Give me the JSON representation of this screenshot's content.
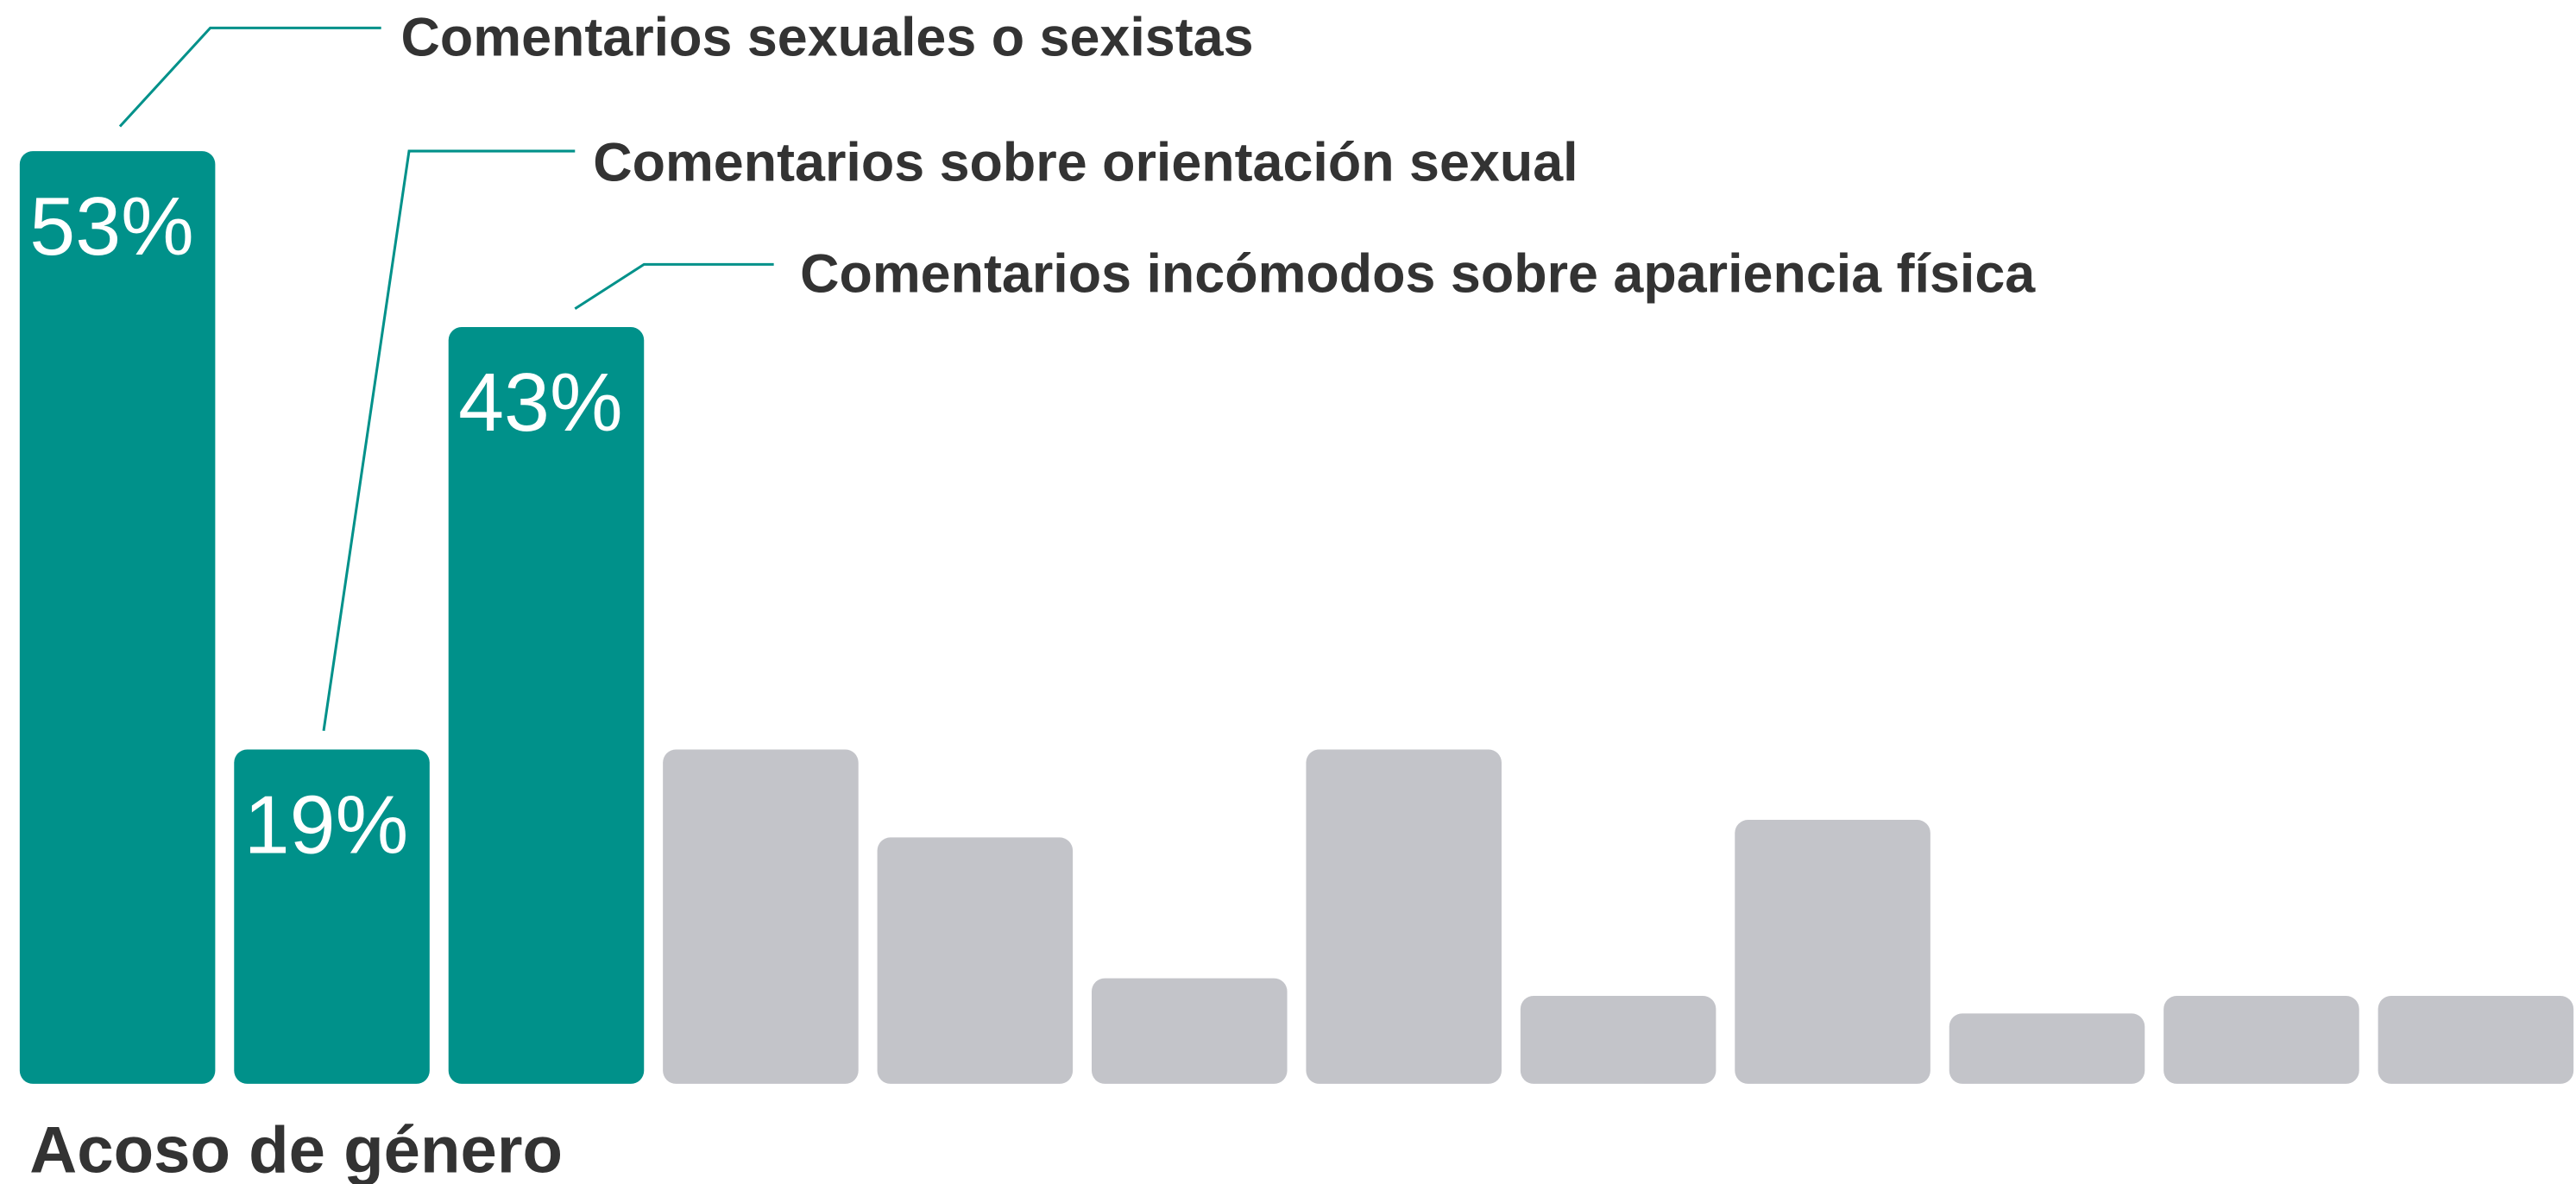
{
  "chart_data": {
    "type": "bar",
    "title": "Acoso de género",
    "categories": [
      "Comentarios sexuales o sexistas",
      "Comentarios sobre orientación sexual",
      "Comentarios incómodos sobre apariencia física",
      null,
      null,
      null,
      null,
      null,
      null,
      null,
      null,
      null
    ],
    "values": [
      53,
      19,
      43,
      19,
      14,
      6,
      19,
      5,
      15,
      4,
      5,
      5
    ],
    "value_labels": [
      "53%",
      "19%",
      "43%",
      null,
      null,
      null,
      null,
      null,
      null,
      null,
      null,
      null
    ],
    "colors": [
      "#00918a",
      "#00918a",
      "#00918a",
      "#c3c4c9",
      "#c3c4c9",
      "#c3c4c9",
      "#c3c4c9",
      "#c3c4c9",
      "#c3c4c9",
      "#c3c4c9",
      "#c3c4c9",
      "#c3c4c9"
    ],
    "ylim": [
      0,
      60
    ]
  }
}
